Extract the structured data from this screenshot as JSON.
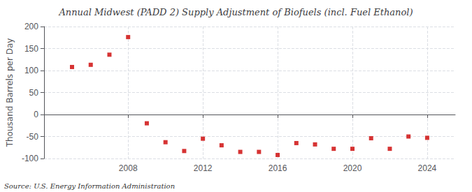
{
  "chart_data": {
    "type": "scatter",
    "title": "Annual Midwest (PADD 2) Supply Adjustment of Biofuels (incl. Fuel Ethanol)",
    "ylabel": "Thousand Barrels per Day",
    "annotation": "Source: U.S. Energy Information Administration",
    "x": [
      2005,
      2006,
      2007,
      2008,
      2009,
      2010,
      2011,
      2012,
      2013,
      2014,
      2015,
      2016,
      2017,
      2018,
      2019,
      2020,
      2021,
      2022,
      2023,
      2024
    ],
    "values": [
      108,
      113,
      136,
      176,
      -20,
      -63,
      -83,
      -55,
      -70,
      -85,
      -85,
      -92,
      -65,
      -68,
      -78,
      -78,
      -54,
      -78,
      -50,
      -53
    ],
    "color": "#cc0000",
    "marker": "square",
    "xlim": [
      2003.5,
      2025.5
    ],
    "xticks": [
      2008,
      2012,
      2016,
      2020,
      2024
    ],
    "ylim": [
      -100,
      200
    ],
    "yticks": [
      -100,
      -50,
      0,
      50,
      100,
      150,
      200
    ],
    "grid": true
  }
}
